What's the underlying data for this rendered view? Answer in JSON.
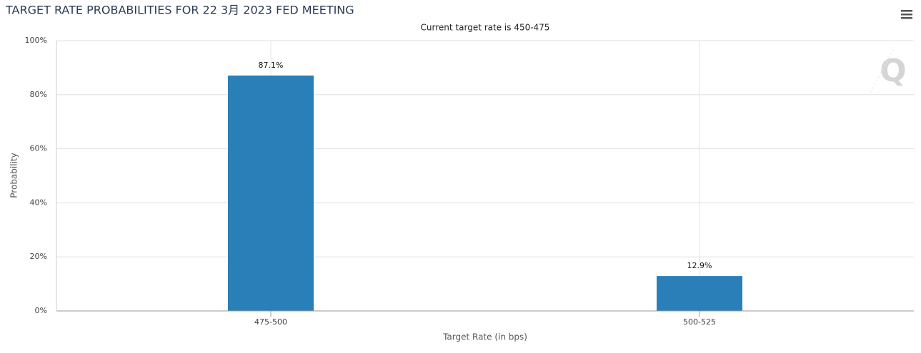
{
  "chart_data": {
    "type": "bar",
    "title": "TARGET RATE PROBABILITIES FOR 22 3月 2023 FED MEETING",
    "subtitle": "Current target rate is 450-475",
    "x_label": "Target Rate (in bps)",
    "y_label": "Probability",
    "categories": [
      "475-500",
      "500-525"
    ],
    "values": [
      87.1,
      12.9
    ],
    "value_labels": [
      "87.1%",
      "12.9%"
    ],
    "color": "#2a7fb8",
    "ylim": [
      0,
      100
    ],
    "yticks": [
      {
        "value": 0,
        "label": "0%"
      },
      {
        "value": 20,
        "label": "20%"
      },
      {
        "value": 40,
        "label": "40%"
      },
      {
        "value": 60,
        "label": "60%"
      },
      {
        "value": 80,
        "label": "80%"
      },
      {
        "value": 100,
        "label": "100%"
      }
    ],
    "grid": true
  }
}
